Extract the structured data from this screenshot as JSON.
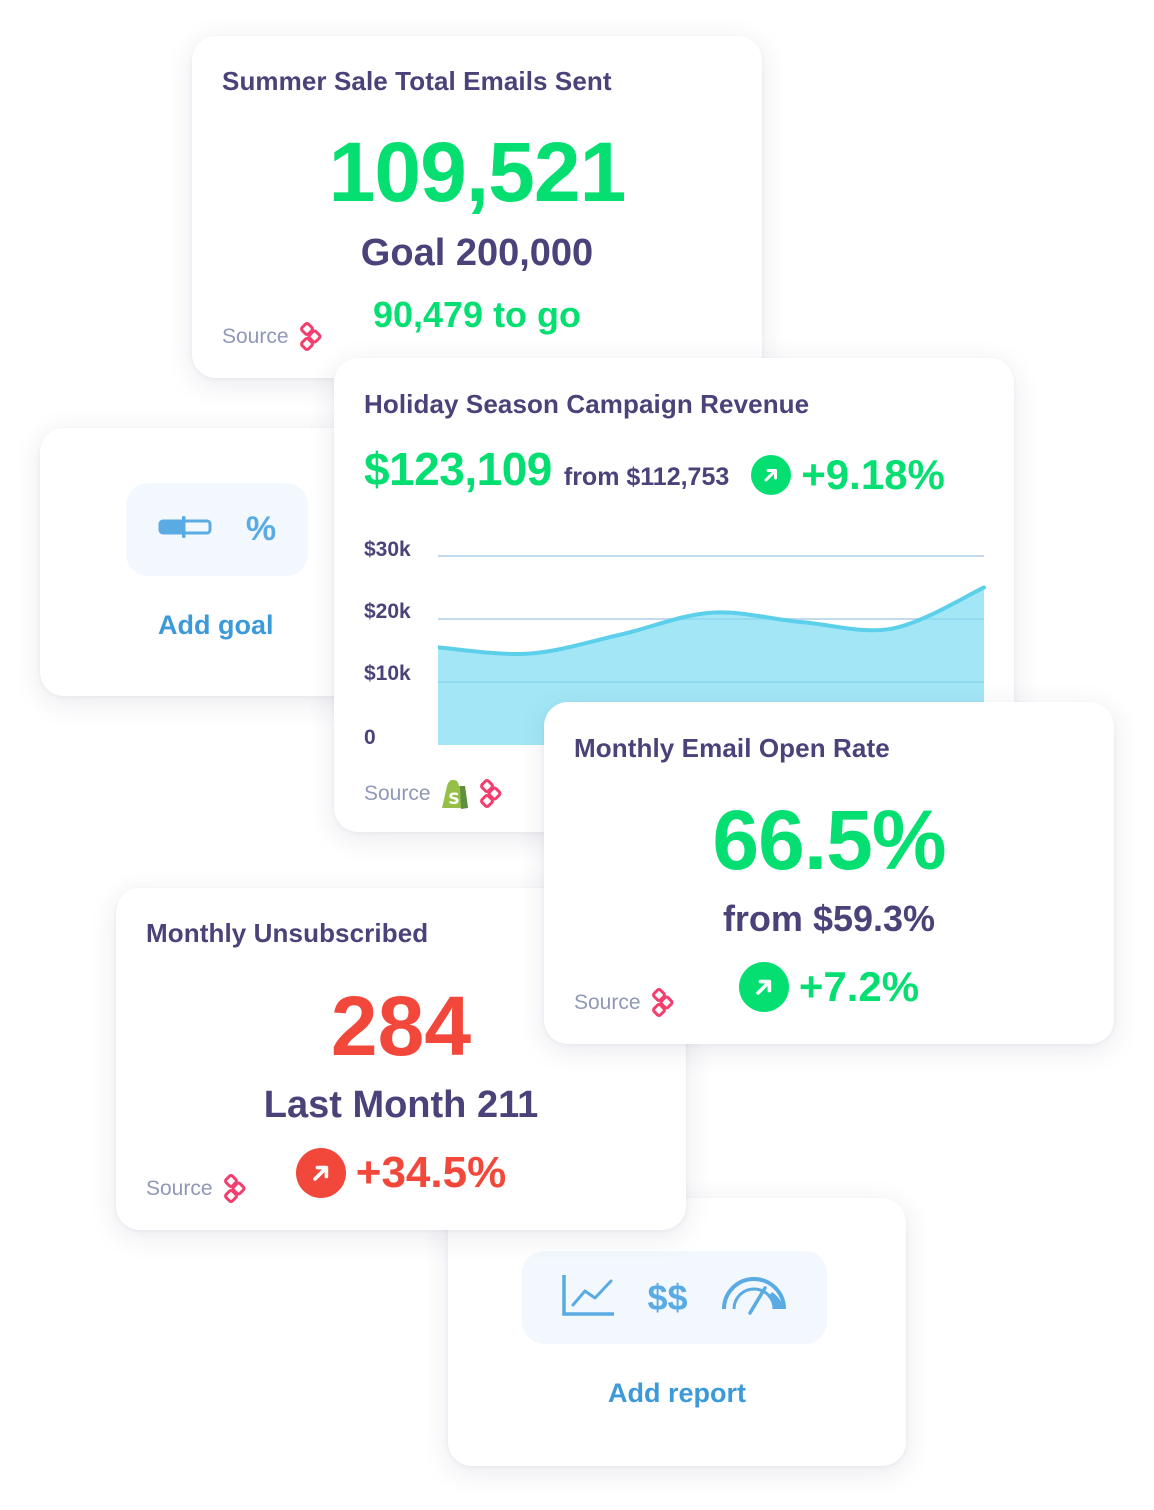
{
  "colors": {
    "green": "#05df72",
    "red": "#f2483b",
    "purple": "#4a4279",
    "blue": "#3d9ad9",
    "icon_blue": "#5aaae3",
    "source_pink": "#f43f6e",
    "shopify_green": "#95bf47",
    "chart_fill": "#a3e7f6",
    "chart_line": "#5ccfeb"
  },
  "cards": {
    "emails_sent": {
      "title": "Summer Sale Total Emails Sent",
      "value": "109,521",
      "goal": "Goal 200,000",
      "remaining": "90,479 to go",
      "source_label": "Source",
      "source_icons": [
        "integration-logo-icon"
      ]
    },
    "add_goal": {
      "icons": [
        "progress-bar-icon",
        "percent-icon"
      ],
      "percent_symbol": "%",
      "label": "Add goal"
    },
    "revenue": {
      "title": "Holiday Season Campaign Revenue",
      "value": "$123,109",
      "from": "from $112,753",
      "change": "+9.18%",
      "change_direction": "up",
      "source_label": "Source",
      "source_icons": [
        "shopify-icon",
        "integration-logo-icon"
      ]
    },
    "open_rate": {
      "title": "Monthly Email Open Rate",
      "value": "66.5%",
      "from": "from $59.3%",
      "change": "+7.2%",
      "change_direction": "up",
      "source_label": "Source",
      "source_icons": [
        "integration-logo-icon"
      ]
    },
    "unsubscribed": {
      "title": "Monthly Unsubscribed",
      "value": "284",
      "last_month": "Last Month 211",
      "change": "+34.5%",
      "change_direction": "up",
      "source_label": "Source",
      "source_icons": [
        "integration-logo-icon"
      ]
    },
    "add_report": {
      "icons": [
        "line-chart-icon",
        "dollar-icon",
        "gauge-icon"
      ],
      "dollar_symbol": "$$",
      "label": "Add report"
    }
  },
  "chart_data": {
    "type": "area",
    "title": "Holiday Season Campaign Revenue",
    "xlabel": "",
    "ylabel": "",
    "ytick_labels": [
      "$30k",
      "$20k",
      "$10k",
      "0"
    ],
    "yticks": [
      30000,
      20000,
      10000,
      0
    ],
    "ylim": [
      0,
      30000
    ],
    "grid": true,
    "x": [
      0,
      1,
      2,
      3,
      4,
      5,
      6
    ],
    "values": [
      15500,
      14500,
      17500,
      21000,
      19500,
      18500,
      25000
    ],
    "smooth": true
  }
}
